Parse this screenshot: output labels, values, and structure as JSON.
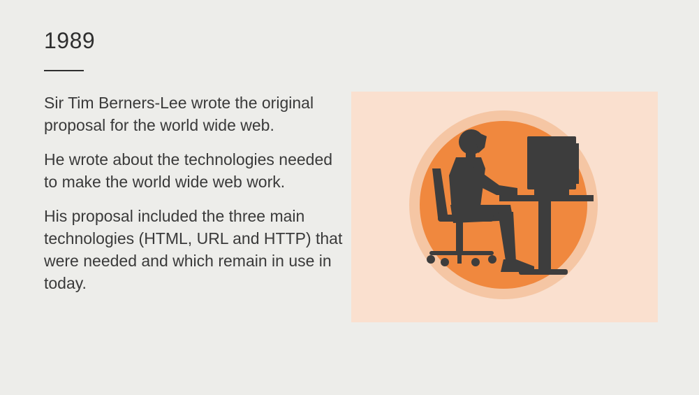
{
  "slide": {
    "title": "1989",
    "paragraphs": [
      "Sir Tim Berners-Lee wrote the original proposal for the world wide web.",
      "He wrote about the technologies needed to make the world wide web work.",
      "His proposal included the three main technologies (HTML, URL and HTTP) that were needed and which remain in use in today."
    ]
  },
  "illustration": {
    "icon": "person-at-computer-icon",
    "colors": {
      "panel": "#fae0cf",
      "outer_ring": "#f5c6a4",
      "circle": "#f0883e",
      "silhouette": "#3d3d3d"
    }
  }
}
